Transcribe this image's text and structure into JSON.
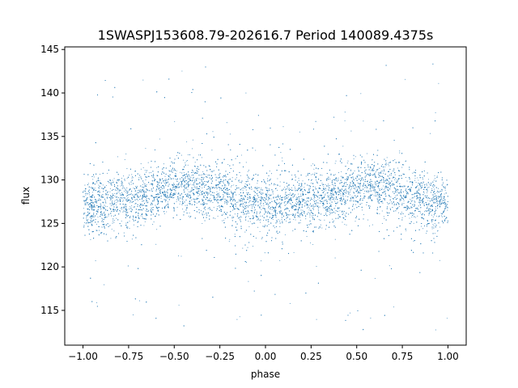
{
  "chart_data": {
    "type": "scatter",
    "title": "1SWASPJ153608.79-202616.7 Period 140089.4375s",
    "xlabel": "phase",
    "ylabel": "flux",
    "xlim": [
      -1.1,
      1.1
    ],
    "ylim": [
      111.0,
      145.3
    ],
    "xticks": [
      -1.0,
      -0.75,
      -0.5,
      -0.25,
      0.0,
      0.25,
      0.5,
      0.75,
      1.0
    ],
    "xtick_labels": [
      "−1.00",
      "−0.75",
      "−0.50",
      "−0.25",
      "0.00",
      "0.25",
      "0.50",
      "0.75",
      "1.00"
    ],
    "yticks": [
      115,
      120,
      125,
      130,
      135,
      140,
      145
    ],
    "ytick_labels": [
      "115",
      "120",
      "125",
      "130",
      "135",
      "140",
      "145"
    ],
    "grid": false,
    "marker_color": "#1f77b4",
    "series": [
      {
        "x_range": [
          -1.0,
          1.0
        ],
        "y_range": [
          112.5,
          143.5
        ],
        "baseline_flux": 127.5,
        "phased_curve": [
          {
            "phase": -1.0,
            "flux": 127.3
          },
          {
            "phase": -0.9,
            "flux": 127.1
          },
          {
            "phase": -0.75,
            "flux": 127.8
          },
          {
            "phase": -0.6,
            "flux": 128.5
          },
          {
            "phase": -0.45,
            "flux": 129.3
          },
          {
            "phase": -0.35,
            "flux": 129.2
          },
          {
            "phase": -0.25,
            "flux": 128.4
          },
          {
            "phase": -0.1,
            "flux": 127.4
          },
          {
            "phase": 0.0,
            "flux": 127.0
          },
          {
            "phase": 0.1,
            "flux": 127.1
          },
          {
            "phase": 0.25,
            "flux": 127.8
          },
          {
            "phase": 0.4,
            "flux": 128.5
          },
          {
            "phase": 0.55,
            "flux": 129.3
          },
          {
            "phase": 0.65,
            "flux": 129.2
          },
          {
            "phase": 0.75,
            "flux": 128.4
          },
          {
            "phase": 0.9,
            "flux": 127.4
          },
          {
            "phase": 1.0,
            "flux": 127.3
          }
        ]
      }
    ]
  }
}
